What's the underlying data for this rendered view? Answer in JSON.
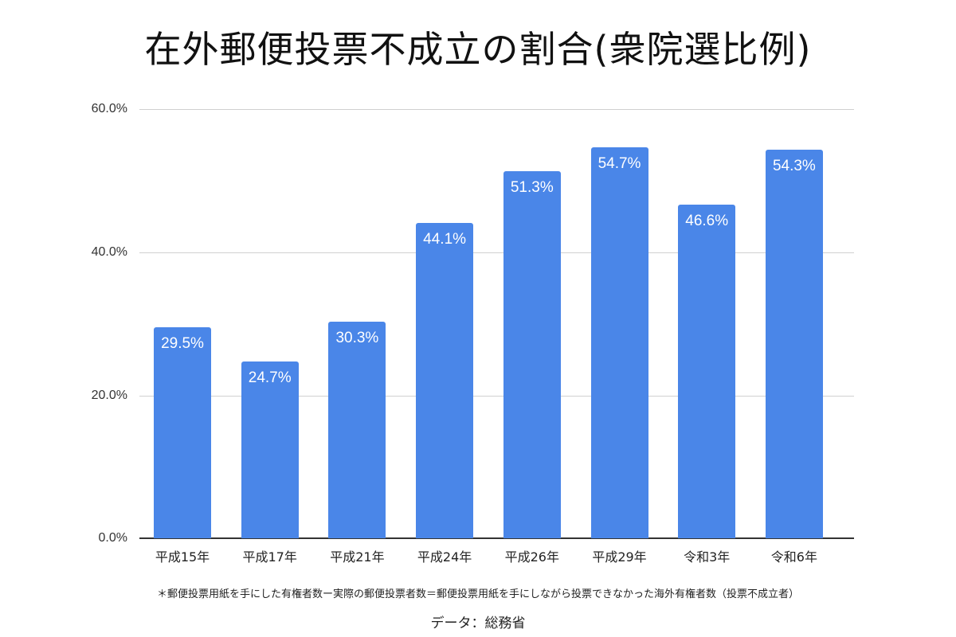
{
  "chart_data": {
    "type": "bar",
    "title": "在外郵便投票不成立の割合(衆院選比例)",
    "categories": [
      "平成15年",
      "平成17年",
      "平成21年",
      "平成24年",
      "平成26年",
      "平成29年",
      "令和3年",
      "令和6年"
    ],
    "values": [
      29.5,
      24.7,
      30.3,
      44.1,
      51.3,
      54.7,
      46.6,
      54.3
    ],
    "value_labels": [
      "29.5%",
      "24.7%",
      "30.3%",
      "44.1%",
      "51.3%",
      "54.7%",
      "46.6%",
      "54.3%"
    ],
    "xlabel": "",
    "ylabel": "",
    "ylim": [
      0,
      60
    ],
    "yticks": [
      "0.0%",
      "20.0%",
      "40.0%",
      "60.0%"
    ],
    "grid": true,
    "bar_color": "#4a86e8",
    "legend": null,
    "annotations": [
      "＊郵便投票用紙を手にした有権者数ー実際の郵便投票者数＝郵便投票用紙を手にしながら投票できなかった海外有権者数（投票不成立者）",
      "データ：総務省"
    ]
  },
  "footer": {
    "note": "＊郵便投票用紙を手にした有権者数ー実際の郵便投票者数＝郵便投票用紙を手にしながら投票できなかった海外有権者数（投票不成立者）",
    "source": "データ：総務省"
  }
}
